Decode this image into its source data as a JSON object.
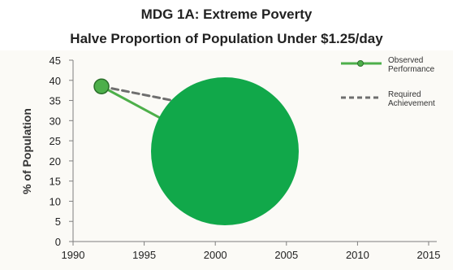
{
  "chart_data": {
    "type": "line",
    "title": "MDG 1A: Extreme Poverty",
    "subtitle": "Halve Proportion of Population Under $1.25/day",
    "xlabel": "",
    "ylabel": "% of Population",
    "xlim": [
      1990,
      2015
    ],
    "ylim": [
      0,
      45
    ],
    "x_ticks": [
      1990,
      1995,
      2000,
      2005,
      2010,
      2015
    ],
    "y_ticks": [
      0,
      5,
      10,
      15,
      20,
      25,
      30,
      35,
      40,
      45
    ],
    "grid": false,
    "legend_position": "top-right",
    "series": [
      {
        "name": "Observed Performance",
        "style": "solid",
        "color": "#4daf4a",
        "x": [
          1992,
          1997
        ],
        "y": [
          38.5,
          29
        ]
      },
      {
        "name": "Required Achievement",
        "style": "dashed",
        "color": "#6e6e6e",
        "x": [
          1992,
          1997
        ],
        "y": [
          38.5,
          35
        ]
      }
    ],
    "start_marker": {
      "x": 1992,
      "y": 38.5,
      "color": "#4daf4a"
    },
    "overlay_circle": {
      "color": "#11a84a"
    }
  }
}
